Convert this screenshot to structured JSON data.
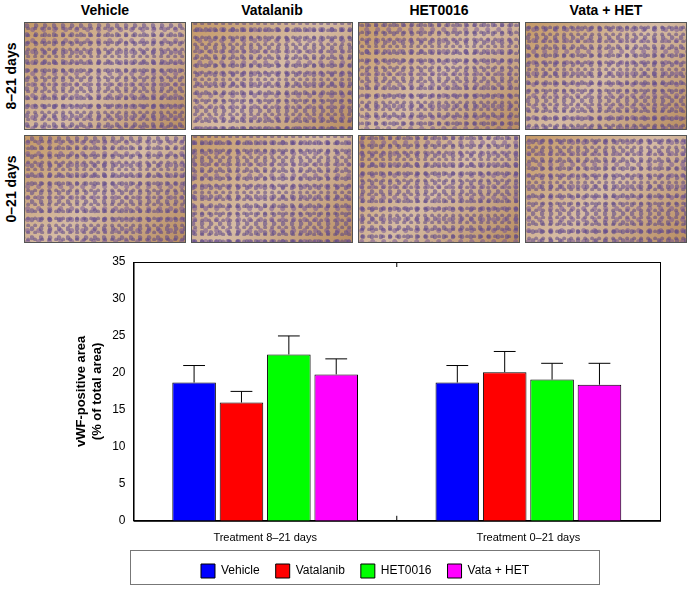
{
  "panels": {
    "columns": [
      "Vehicle",
      "Vatalanib",
      "HET0016",
      "Vata + HET"
    ],
    "rows": [
      "8–21 days",
      "0–21 days"
    ]
  },
  "chart_data": {
    "type": "bar",
    "y_label": [
      "vWF-positive area",
      "(% of total area)"
    ],
    "categories": [
      "Treatment 8–21 days",
      "Treatment 0–21 days"
    ],
    "series": [
      {
        "name": "Vehicle",
        "color": "#0000ff",
        "values": [
          18.7,
          18.7
        ],
        "errors": [
          2.3,
          2.3
        ]
      },
      {
        "name": "Vatalanib",
        "color": "#ff0000",
        "values": [
          16.0,
          20.1
        ],
        "errors": [
          1.5,
          2.8
        ]
      },
      {
        "name": "HET0016",
        "color": "#00ff00",
        "values": [
          22.5,
          19.1
        ],
        "errors": [
          2.5,
          2.2
        ]
      },
      {
        "name": "Vata + HET",
        "color": "#ff00ff",
        "values": [
          19.8,
          18.4
        ],
        "errors": [
          2.1,
          2.9
        ]
      }
    ],
    "ylim": [
      0,
      35
    ],
    "yticks": [
      0,
      5,
      10,
      15,
      20,
      25,
      30,
      35
    ],
    "grid": false,
    "legend": "bottom"
  }
}
